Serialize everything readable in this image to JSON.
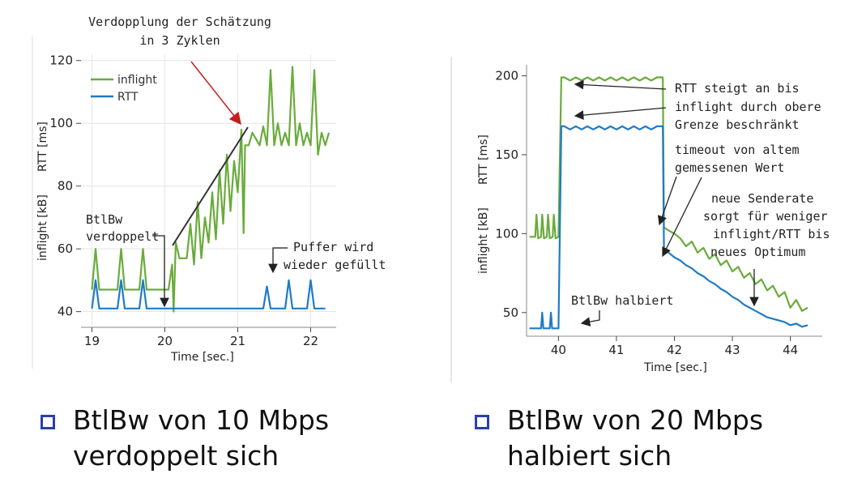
{
  "colors": {
    "inflight": "#6aab3b",
    "rtt": "#1f7bc4",
    "arrow_red": "#c41e1e",
    "arrow_dark": "#333333",
    "bullet": "#2a3fb0"
  },
  "chart_data": [
    {
      "type": "line",
      "xlabel": "Time [sec.]",
      "ylabel_top": "RTT [ms]",
      "ylabel_bottom": "inflight [kB]",
      "xlim": [
        18.85,
        22.35
      ],
      "ylim": [
        35,
        122
      ],
      "xticks": [
        "19",
        "20",
        "21",
        "22"
      ],
      "yticks": [
        "40",
        "60",
        "80",
        "100",
        "120"
      ],
      "series": [
        {
          "name": "inflight",
          "x": [
            19.0,
            19.05,
            19.1,
            19.15,
            19.35,
            19.4,
            19.45,
            19.5,
            19.65,
            19.7,
            19.75,
            19.8,
            20.0,
            20.05,
            20.1,
            20.12,
            20.15,
            20.2,
            20.3,
            20.35,
            20.4,
            20.45,
            20.5,
            20.55,
            20.6,
            20.65,
            20.7,
            20.75,
            20.8,
            20.85,
            20.9,
            20.95,
            21.0,
            21.05,
            21.08,
            21.1,
            21.15,
            21.2,
            21.3,
            21.35,
            21.4,
            21.45,
            21.5,
            21.55,
            21.6,
            21.65,
            21.7,
            21.75,
            21.8,
            21.85,
            21.9,
            21.95,
            22.0,
            22.05,
            22.1,
            22.15,
            22.2,
            22.25
          ],
          "y": [
            47,
            60,
            47,
            47,
            47,
            60,
            47,
            47,
            47,
            60,
            47,
            47,
            47,
            47,
            55,
            40,
            62,
            57,
            57,
            68,
            55,
            75,
            57,
            70,
            62,
            78,
            63,
            85,
            68,
            90,
            72,
            88,
            78,
            98,
            65,
            93,
            93,
            97,
            93,
            99,
            93,
            117,
            93,
            100,
            93,
            97,
            93,
            118,
            93,
            100,
            93,
            97,
            93,
            117,
            90,
            97,
            93,
            97
          ]
        },
        {
          "name": "RTT",
          "x": [
            19.0,
            19.05,
            19.1,
            19.15,
            19.35,
            19.4,
            19.45,
            19.5,
            19.65,
            19.7,
            19.75,
            19.8,
            20.0,
            20.05,
            21.35,
            21.4,
            21.45,
            21.65,
            21.7,
            21.75,
            21.95,
            22.0,
            22.05,
            22.2
          ],
          "y": [
            41,
            50,
            41,
            41,
            41,
            50,
            41,
            41,
            41,
            50,
            41,
            41,
            41,
            41,
            41,
            48,
            41,
            41,
            50,
            41,
            41,
            50,
            41,
            41
          ]
        }
      ],
      "annotations": [
        "Verdopplung der Schätzung",
        "in 3 Zyklen",
        "BtlBw",
        "verdoppelt",
        "Puffer wird",
        "wieder gefüllt"
      ]
    },
    {
      "type": "line",
      "xlabel": "Time [sec.]",
      "ylabel_top": "RTT [ms]",
      "ylabel_bottom": "inflight [kB]",
      "xlim": [
        39.45,
        44.55
      ],
      "ylim": [
        35,
        208
      ],
      "xticks": [
        "40",
        "41",
        "42",
        "43",
        "44"
      ],
      "yticks": [
        "50",
        "100",
        "150",
        "200"
      ],
      "series": [
        {
          "name": "inflight",
          "x": [
            39.5,
            39.6,
            39.62,
            39.65,
            39.7,
            39.72,
            39.75,
            39.8,
            39.82,
            39.85,
            39.9,
            39.92,
            39.95,
            40.0,
            40.05,
            40.1,
            40.2,
            40.3,
            40.4,
            40.5,
            40.6,
            40.7,
            40.8,
            40.9,
            41.0,
            41.1,
            41.2,
            41.3,
            41.4,
            41.5,
            41.6,
            41.7,
            41.8,
            41.82,
            41.9,
            42.0,
            42.1,
            42.2,
            42.3,
            42.4,
            42.5,
            42.6,
            42.7,
            42.8,
            42.9,
            43.0,
            43.1,
            43.2,
            43.3,
            43.4,
            43.5,
            43.6,
            43.7,
            43.8,
            43.9,
            44.0,
            44.1,
            44.2,
            44.3
          ],
          "y": [
            98,
            98,
            112,
            97,
            98,
            112,
            97,
            98,
            112,
            97,
            98,
            112,
            97,
            98,
            199,
            199,
            197,
            199,
            197,
            199,
            197,
            199,
            197,
            199,
            197,
            199,
            197,
            199,
            197,
            199,
            197,
            199,
            199,
            104,
            102,
            100,
            97,
            92,
            95,
            88,
            91,
            84,
            87,
            80,
            83,
            76,
            79,
            72,
            75,
            68,
            71,
            64,
            67,
            60,
            63,
            53,
            58,
            51,
            53
          ]
        },
        {
          "name": "RTT",
          "x": [
            39.5,
            39.7,
            39.72,
            39.74,
            39.76,
            39.85,
            39.87,
            39.89,
            39.91,
            40.0,
            40.05,
            40.1,
            40.2,
            40.3,
            40.4,
            40.5,
            40.6,
            40.7,
            40.8,
            40.9,
            41.0,
            41.1,
            41.2,
            41.3,
            41.4,
            41.5,
            41.6,
            41.7,
            41.8,
            41.82,
            41.9,
            42.0,
            42.1,
            42.2,
            42.3,
            42.4,
            42.5,
            42.6,
            42.7,
            42.8,
            42.9,
            43.0,
            43.1,
            43.2,
            43.3,
            43.4,
            43.5,
            43.6,
            43.7,
            43.8,
            43.9,
            44.0,
            44.1,
            44.2,
            44.3
          ],
          "y": [
            40,
            40,
            50,
            40,
            40,
            40,
            50,
            40,
            40,
            40,
            168,
            168,
            166,
            168,
            166,
            168,
            166,
            168,
            166,
            168,
            166,
            168,
            166,
            168,
            166,
            168,
            166,
            168,
            168,
            90,
            88,
            85,
            83,
            80,
            78,
            75,
            73,
            70,
            68,
            65,
            63,
            60,
            58,
            55,
            53,
            51,
            49,
            47,
            46,
            45,
            44,
            42,
            43,
            41,
            42
          ]
        }
      ],
      "annotations": [
        "RTT steigt an bis",
        "inflight durch obere",
        "Grenze beschränkt",
        "timeout von altem",
        "gemessenen Wert",
        "neue Senderate",
        "sorgt für weniger",
        "inflight/RTT bis",
        "neues Optimum",
        "BtlBw halbiert"
      ]
    }
  ],
  "bullets": [
    {
      "line1": "BtlBw von 10 Mbps",
      "line2": "verdoppelt sich"
    },
    {
      "line1": "BtlBw von 20 Mbps",
      "line2": "halbiert sich"
    }
  ]
}
